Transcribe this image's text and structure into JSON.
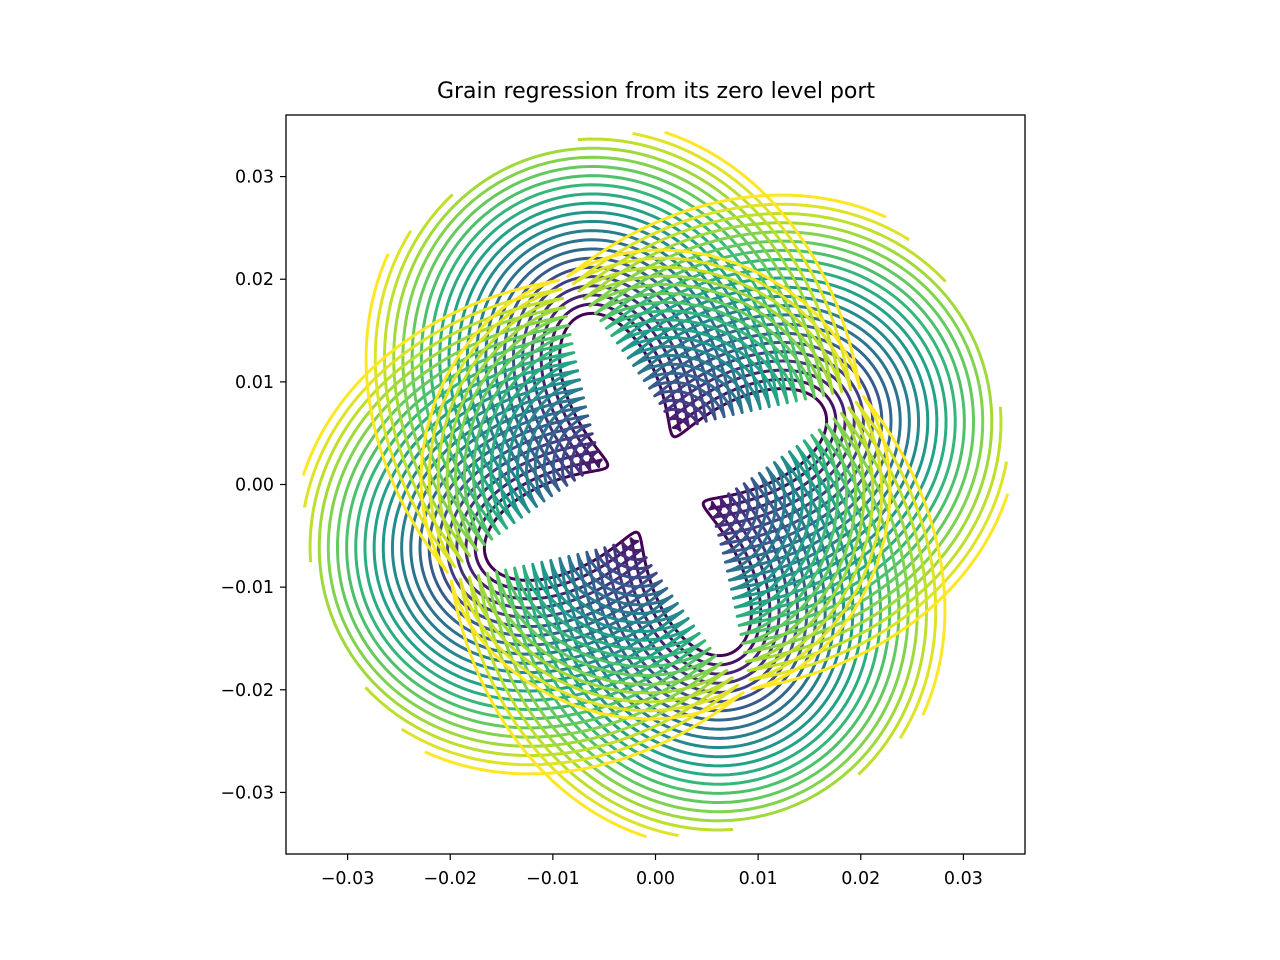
{
  "chart_data": {
    "type": "contour",
    "title": "Grain regression from its zero level port",
    "xlabel": "",
    "ylabel": "",
    "xlim": [
      -0.036,
      0.036
    ],
    "ylim": [
      -0.036,
      0.036
    ],
    "xticks": [
      -0.03,
      -0.02,
      -0.01,
      0.0,
      0.01,
      0.02,
      0.03
    ],
    "xtick_labels": [
      "−0.03",
      "−0.02",
      "−0.01",
      "0.00",
      "0.01",
      "0.02",
      "0.03"
    ],
    "yticks": [
      -0.03,
      -0.02,
      -0.01,
      0.0,
      0.01,
      0.02,
      0.03
    ],
    "ytick_labels": [
      "−0.03",
      "−0.02",
      "−0.01",
      "0.00",
      "0.01",
      "0.02",
      "0.03"
    ],
    "aspect": "equal",
    "grid": false,
    "colormap": "viridis",
    "port_shape": "four-lobed star (zero level set)",
    "level_spacing": 0.0009,
    "contour_count": 22,
    "outer_clip_radius": 0.0345
  }
}
